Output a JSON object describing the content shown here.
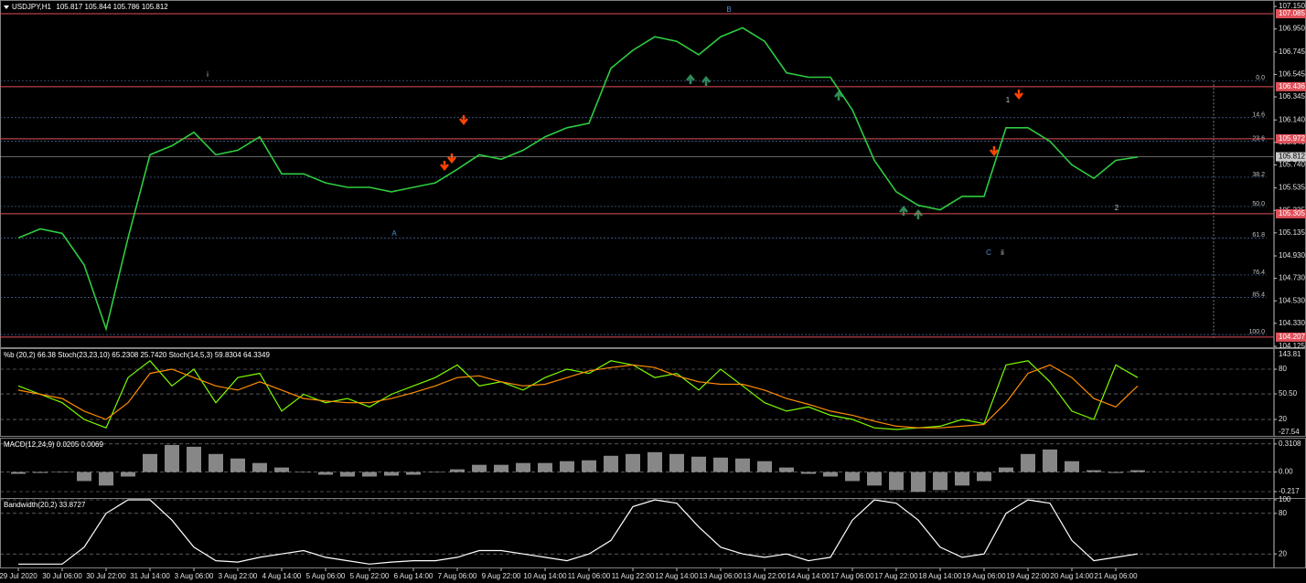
{
  "chart_data": [
    {
      "type": "line",
      "title": "USDJPY,H1",
      "subtitle": "105.817 105.844 105.786 105.812",
      "categories": [
        "29 Jul 2020",
        null,
        "30 Jul 06:00",
        null,
        "30 Jul 22:00",
        null,
        "31 Jul 14:00",
        null,
        "3 Aug 06:00",
        null,
        "3 Aug 22:00",
        null,
        "4 Aug 14:00",
        null,
        "5 Aug 06:00",
        null,
        "5 Aug 22:00",
        null,
        "6 Aug 14:00",
        null,
        "7 Aug 06:00",
        null,
        "9 Aug 22:00",
        null,
        "10 Aug 14:00",
        null,
        "11 Aug 06:00",
        null,
        "11 Aug 22:00",
        null,
        "12 Aug 14:00",
        null,
        "13 Aug 06:00",
        null,
        "13 Aug 22:00",
        null,
        "14 Aug 14:00",
        null,
        "17 Aug 06:00",
        null,
        "17 Aug 22:00",
        null,
        "18 Aug 14:00",
        null,
        "19 Aug 06:00",
        null,
        "19 Aug 22:00",
        null,
        "20 Aug 14:00",
        null,
        "21 Aug 06:00",
        null
      ],
      "series": [
        {
          "color": "#2ecc40",
          "values": [
            105.09,
            105.17,
            105.13,
            104.85,
            104.28,
            105.09,
            105.83,
            105.91,
            106.03,
            105.83,
            105.87,
            105.99,
            105.66,
            105.66,
            105.58,
            105.54,
            105.54,
            105.5,
            105.54,
            105.58,
            105.7,
            105.83,
            105.79,
            105.87,
            105.99,
            106.07,
            106.11,
            106.6,
            106.76,
            106.88,
            106.84,
            106.72,
            106.88,
            106.96,
            106.84,
            106.56,
            106.52,
            106.52,
            106.23,
            105.78,
            105.5,
            105.38,
            105.34,
            105.46,
            105.46,
            106.07,
            106.07,
            105.95,
            105.74,
            105.62,
            105.78,
            105.81
          ]
        }
      ],
      "ylim": [
        104.117,
        107.191
      ],
      "yticks": [
        {
          "value": 107.15,
          "label": "107.150"
        },
        {
          "value": 106.95,
          "label": "106.950"
        },
        106.745,
        106.545,
        106.345,
        {
          "value": 106.14,
          "label": "106.140"
        },
        {
          "value": 105.94,
          "label": "105.940"
        },
        {
          "value": 105.74,
          "label": "105.740"
        },
        105.535,
        105.335,
        105.135,
        {
          "value": 104.93,
          "label": "104.930"
        },
        {
          "value": 104.73,
          "label": "104.730"
        },
        {
          "value": 104.53,
          "label": "104.530"
        },
        {
          "value": 104.33,
          "label": "104.330"
        },
        104.125
      ],
      "levels": [
        {
          "value": 107.085,
          "color": "#e0505a"
        },
        {
          "value": 106.436,
          "color": "#e0505a"
        },
        {
          "value": 105.972,
          "color": "#e0505a"
        },
        {
          "value": 105.812,
          "color": "#c8c8c8"
        },
        {
          "value": 105.305,
          "color": "#e0505a"
        },
        {
          "value": 104.207,
          "color": "#e0505a"
        }
      ],
      "fib_levels": [
        {
          "value": 106.49,
          "label": "0.0"
        },
        {
          "value": 106.16,
          "label": "14.6"
        },
        {
          "value": 105.95,
          "label": "23.6"
        },
        {
          "value": 105.63,
          "label": "38.2"
        },
        {
          "value": 105.37,
          "label": "50.0"
        },
        {
          "value": 105.09,
          "label": "61.8"
        },
        {
          "value": 104.76,
          "label": "76.4"
        },
        {
          "value": 104.56,
          "label": "85.4"
        },
        {
          "value": 104.23,
          "label": "100.0"
        }
      ],
      "annotations": [
        "B",
        "A",
        "C",
        "ii",
        "1",
        "2",
        "i"
      ]
    },
    {
      "type": "line",
      "title": "%b (20,2) 66.38  Stoch(23,23,10) 65.2308 25.7420  Stoch(14,5,3) 59.8304 64.3349",
      "series": [
        {
          "color": "#7cfc00",
          "values": [
            60,
            50,
            40,
            20,
            10,
            70,
            90,
            60,
            80,
            40,
            70,
            75,
            30,
            50,
            40,
            45,
            35,
            50,
            60,
            70,
            85,
            60,
            65,
            55,
            70,
            80,
            75,
            90,
            85,
            70,
            75,
            55,
            80,
            60,
            40,
            30,
            35,
            25,
            20,
            10,
            8,
            10,
            12,
            20,
            15,
            85,
            90,
            65,
            30,
            20,
            85,
            70
          ]
        },
        {
          "color": "#ff8c00",
          "values": [
            55,
            50,
            45,
            30,
            20,
            40,
            75,
            80,
            70,
            60,
            55,
            65,
            55,
            45,
            42,
            40,
            40,
            45,
            52,
            60,
            70,
            72,
            65,
            60,
            62,
            70,
            78,
            82,
            85,
            82,
            72,
            65,
            62,
            62,
            55,
            45,
            38,
            30,
            25,
            18,
            12,
            10,
            10,
            12,
            14,
            40,
            75,
            85,
            70,
            45,
            35,
            60
          ]
        }
      ],
      "ylim": [
        0.4,
        102.9
      ],
      "yticks": [
        80,
        {
          "value": 50.5,
          "label": "50.50"
        },
        20
      ],
      "scale_labels": [
        "143.81",
        "-27.54"
      ]
    },
    {
      "type": "bar",
      "title": "MACD(12,24,9) 0.0205 0.0069",
      "color": "#b4b4b4",
      "values": [
        -0.02,
        -0.01,
        0.0,
        -0.1,
        -0.15,
        -0.05,
        0.2,
        0.3,
        0.28,
        0.2,
        0.15,
        0.1,
        0.05,
        0.0,
        -0.03,
        -0.05,
        -0.05,
        -0.04,
        -0.03,
        0.0,
        0.03,
        0.08,
        0.08,
        0.1,
        0.1,
        0.12,
        0.13,
        0.18,
        0.2,
        0.22,
        0.2,
        0.17,
        0.16,
        0.15,
        0.12,
        0.05,
        -0.02,
        -0.05,
        -0.1,
        -0.15,
        -0.2,
        -0.22,
        -0.2,
        -0.15,
        -0.1,
        0.05,
        0.2,
        0.25,
        0.12,
        0.02,
        -0.01,
        0.02
      ],
      "ylim": [
        -0.288,
        0.36
      ],
      "yticks": [
        0.3108,
        {
          "value": 0,
          "label": "0.00"
        },
        -0.217
      ]
    },
    {
      "type": "line",
      "title": "Bandwidth(20,2) 33.8727",
      "series": [
        {
          "color": "#ffffff",
          "values": [
            5,
            5,
            5,
            30,
            80,
            100,
            100,
            70,
            30,
            10,
            8,
            15,
            20,
            25,
            15,
            10,
            5,
            8,
            10,
            10,
            15,
            25,
            25,
            20,
            15,
            10,
            20,
            40,
            90,
            100,
            95,
            60,
            30,
            20,
            15,
            20,
            10,
            15,
            70,
            100,
            95,
            70,
            30,
            15,
            20,
            80,
            100,
            95,
            40,
            10,
            15,
            20
          ]
        }
      ],
      "ylim": [
        0,
        100
      ],
      "yticks": [
        100,
        80,
        20
      ]
    }
  ]
}
